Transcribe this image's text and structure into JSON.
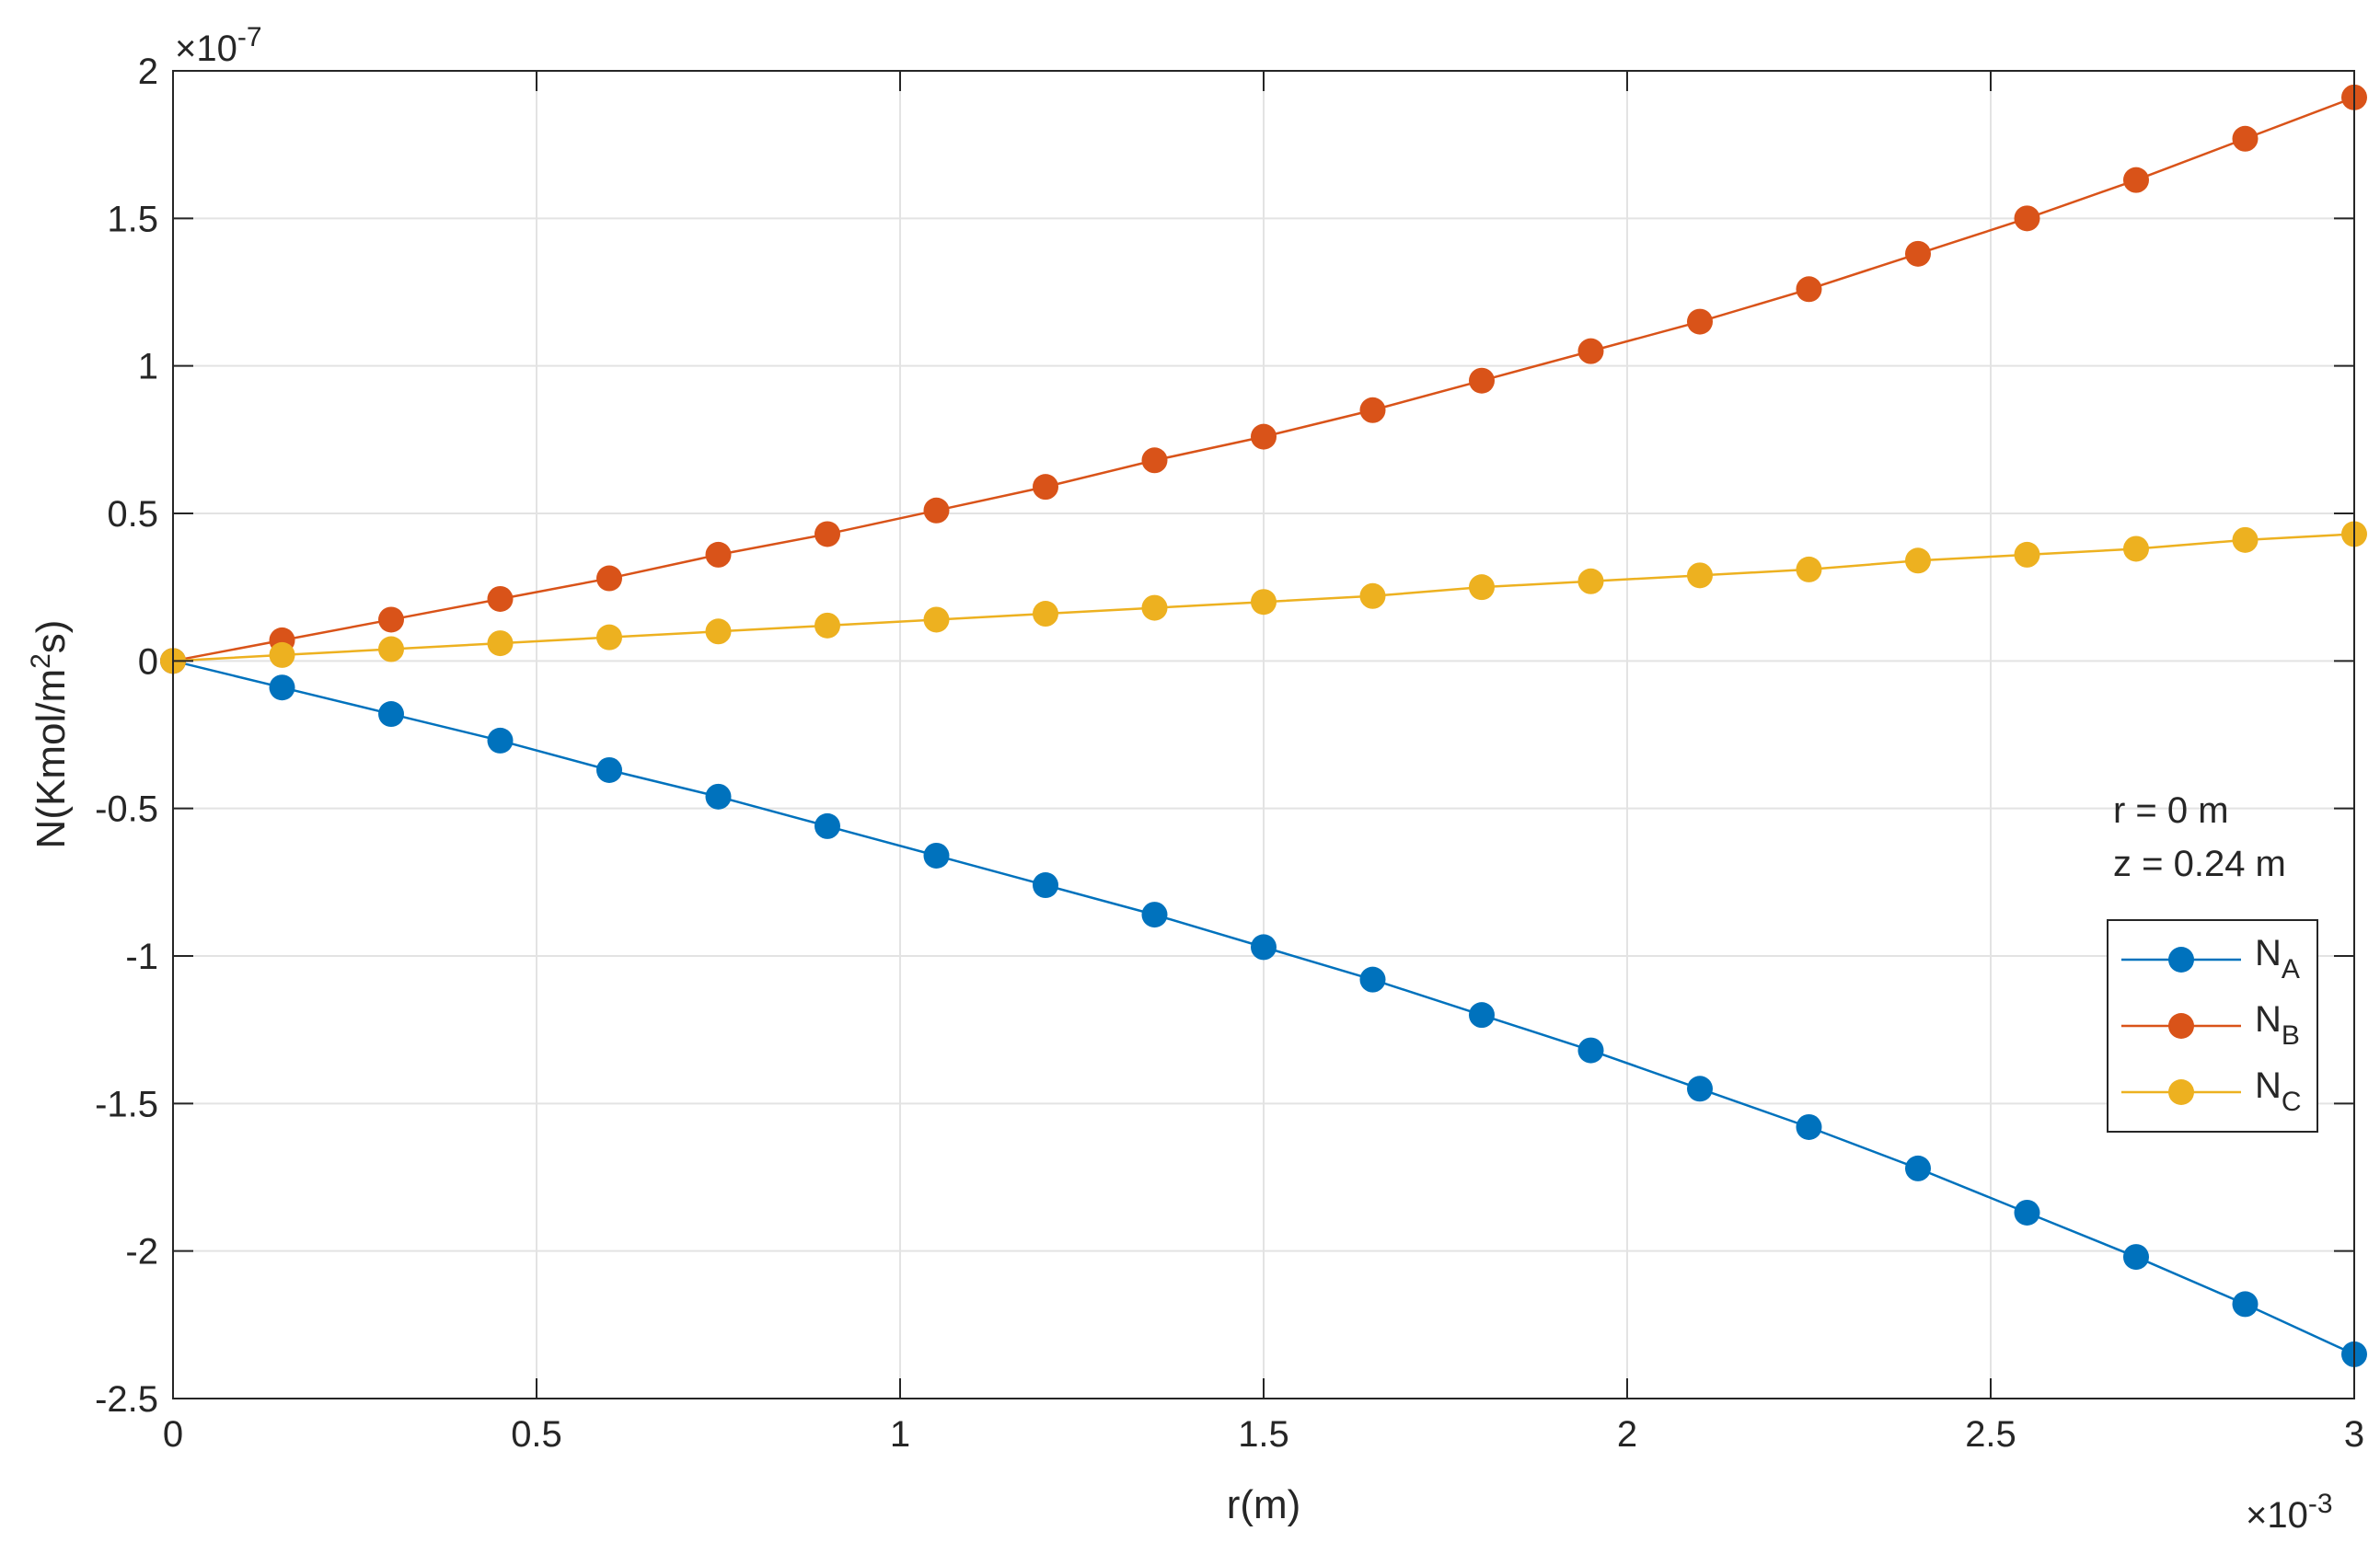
{
  "chart_data": {
    "type": "line",
    "xlabel": "r(m)",
    "ylabel": "N(Kmol/m2s)",
    "ylabel_parts": {
      "main": "N(Kmol/m",
      "sup": "2",
      "tail": "s)"
    },
    "x_exponent": {
      "base": "×10",
      "power": "-3"
    },
    "y_exponent": {
      "base": "×10",
      "power": "-7"
    },
    "xlim": [
      0,
      3
    ],
    "ylim": [
      -2.5,
      2
    ],
    "x_ticks": [
      0,
      0.5,
      1,
      1.5,
      2,
      2.5,
      3
    ],
    "x_tick_labels": [
      "0",
      "0.5",
      "1",
      "1.5",
      "2",
      "2.5",
      "3"
    ],
    "y_ticks": [
      -2.5,
      -2,
      -1.5,
      -1,
      -0.5,
      0,
      0.5,
      1,
      1.5,
      2
    ],
    "y_tick_labels": [
      "-2.5",
      "-2",
      "-1.5",
      "-1",
      "-0.5",
      "0",
      "0.5",
      "1",
      "1.5",
      "2"
    ],
    "grid": true,
    "legend_position": "right",
    "x": [
      0,
      0.15,
      0.3,
      0.45,
      0.6,
      0.75,
      0.9,
      1.05,
      1.2,
      1.35,
      1.5,
      1.65,
      1.8,
      1.95,
      2.1,
      2.25,
      2.4,
      2.55,
      2.7,
      2.85,
      3.0
    ],
    "series": [
      {
        "name": "NA",
        "label_main": "N",
        "label_sub": "A",
        "color": "#0072BD",
        "values": [
          0,
          -0.09,
          -0.18,
          -0.27,
          -0.37,
          -0.46,
          -0.56,
          -0.66,
          -0.76,
          -0.86,
          -0.97,
          -1.08,
          -1.2,
          -1.32,
          -1.45,
          -1.58,
          -1.72,
          -1.87,
          -2.02,
          -2.18,
          -2.35
        ]
      },
      {
        "name": "NB",
        "label_main": "N",
        "label_sub": "B",
        "color": "#D95319",
        "values": [
          0,
          0.07,
          0.14,
          0.21,
          0.28,
          0.36,
          0.43,
          0.51,
          0.59,
          0.68,
          0.76,
          0.85,
          0.95,
          1.05,
          1.15,
          1.26,
          1.38,
          1.5,
          1.63,
          1.77,
          1.91
        ]
      },
      {
        "name": "NC",
        "label_main": "N",
        "label_sub": "C",
        "color": "#EDB120",
        "values": [
          0,
          0.02,
          0.04,
          0.06,
          0.08,
          0.1,
          0.12,
          0.14,
          0.16,
          0.18,
          0.2,
          0.22,
          0.25,
          0.27,
          0.29,
          0.31,
          0.34,
          0.36,
          0.38,
          0.41,
          0.43
        ]
      }
    ],
    "annotations": [
      "r = 0 m",
      "z = 0.24 m"
    ]
  }
}
